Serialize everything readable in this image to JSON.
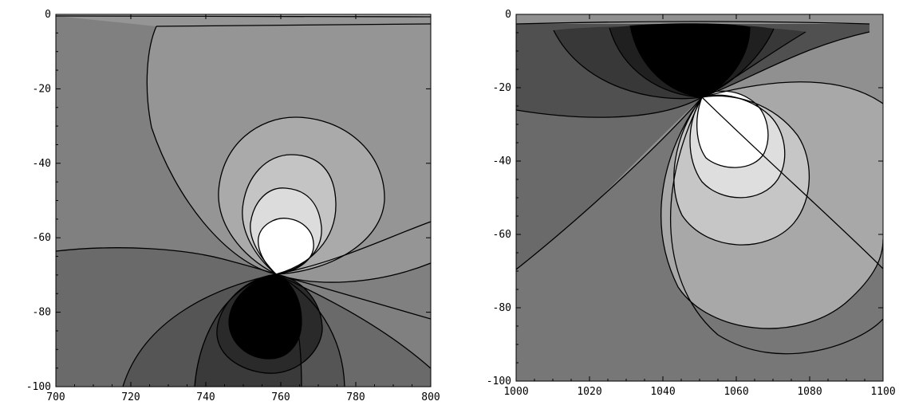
{
  "chart_data": [
    {
      "type": "contour",
      "title": "",
      "xlabel": "",
      "ylabel": "",
      "xlim": [
        700,
        800
      ],
      "ylim": [
        -100,
        0
      ],
      "x_ticks": [
        "700",
        "720",
        "740",
        "760",
        "780",
        "800"
      ],
      "y_ticks": [
        "0",
        "-20",
        "-40",
        "-60",
        "-80",
        "-100"
      ],
      "grid": false,
      "colors": {
        "black": "#000000",
        "dark1": "#3a3a3a",
        "dark2": "#555555",
        "mid": "#808080",
        "midlight": "#959595",
        "light1": "#aaaaaa",
        "light2": "#c4c4c4",
        "light3": "#dcdcdc",
        "white": "#ffffff"
      },
      "features": {
        "dipole_center": [
          757,
          -70
        ],
        "light_lobe_center": [
          761,
          -62
        ],
        "dark_lobe_center": [
          755,
          -80
        ],
        "surface_band_y": -3
      }
    },
    {
      "type": "contour",
      "title": "",
      "xlabel": "",
      "ylabel": "",
      "xlim": [
        1000,
        1100
      ],
      "ylim": [
        -100,
        0
      ],
      "x_ticks": [
        "1000",
        "1020",
        "1040",
        "1060",
        "1080",
        "1100"
      ],
      "y_ticks": [
        "0",
        "-20",
        "-40",
        "-60",
        "-80",
        "-100"
      ],
      "grid": false,
      "colors": {
        "black": "#000000",
        "dark1": "#383838",
        "dark2": "#505050",
        "mid": "#777777",
        "midlight": "#909090",
        "light1": "#a8a8a8",
        "light2": "#c6c6c6",
        "light3": "#dedede",
        "white": "#ffffff"
      },
      "features": {
        "dipole_center": [
          1053,
          -21
        ],
        "light_lobe_center": [
          1059,
          -30
        ],
        "dark_lobe_center": [
          1047,
          -10
        ]
      }
    }
  ]
}
